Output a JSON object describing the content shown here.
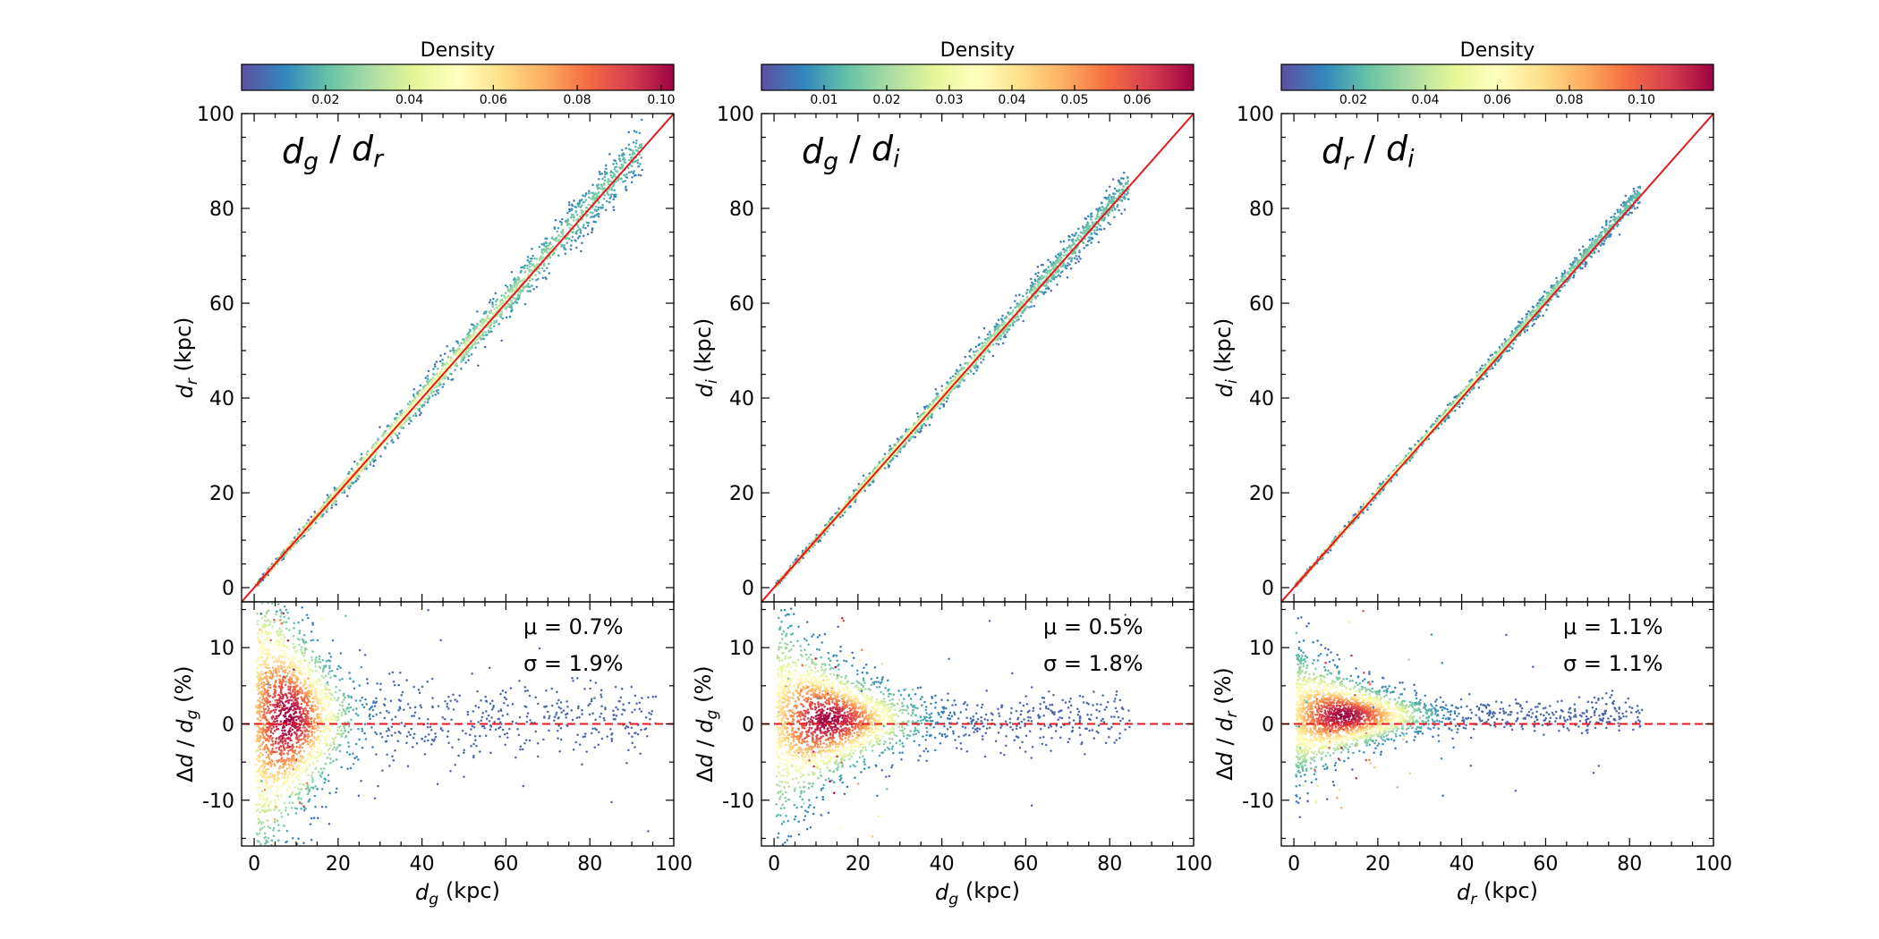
{
  "colormap": "Spectral_r",
  "colors": {
    "identity_line": "#e41a1c",
    "zero_line": "#e41a1c"
  },
  "chart_data": [
    {
      "type": "scatter",
      "panel": "top",
      "title_base": "d",
      "title_sub1": "g",
      "title_sep": " / ",
      "title_sub2": "r",
      "xlabel_base": "d",
      "xlabel_sub": "g",
      "xlabel_unit": " (kpc)",
      "ylabel_base": "d",
      "ylabel_sub": "r",
      "ylabel_unit": " (kpc)",
      "xlim": [
        -3,
        100
      ],
      "ylim": [
        -3,
        100
      ],
      "xticks": [
        0,
        20,
        40,
        60,
        80,
        100
      ],
      "yticks": [
        0,
        20,
        40,
        60,
        80,
        100
      ],
      "reference_line": "y = x",
      "ridge": {
        "x": [
          0,
          10,
          20,
          30,
          40,
          50,
          60,
          70,
          80,
          90
        ],
        "y": [
          0,
          10.1,
          20.1,
          30.2,
          40.3,
          50.4,
          60.4,
          70.5,
          80.6,
          90.6
        ]
      },
      "max_x": 92,
      "scatter_width": 0.028,
      "colorbar": {
        "label": "Density",
        "range": [
          0.0,
          0.103
        ],
        "ticks": [
          "0.02",
          "0.04",
          "0.06",
          "0.08",
          "0.10"
        ],
        "tick_values": [
          0.02,
          0.04,
          0.06,
          0.08,
          0.1
        ]
      },
      "residual": {
        "ylabel_pre": "Δd / d",
        "ylabel_sub": "g",
        "ylabel_unit": " (%)",
        "ylim": [
          -16,
          16
        ],
        "yticks": [
          -10,
          0,
          10
        ],
        "mu_label": "μ = 0.7%",
        "sigma_label": "σ = 1.9%",
        "mu": 0.7,
        "sigma": 1.9,
        "density_peak_x": 8,
        "max_x": 95
      }
    },
    {
      "type": "scatter",
      "panel": "top",
      "title_base": "d",
      "title_sub1": "g",
      "title_sep": " / ",
      "title_sub2": "i",
      "xlabel_base": "d",
      "xlabel_sub": "g",
      "xlabel_unit": " (kpc)",
      "ylabel_base": "d",
      "ylabel_sub": "i",
      "ylabel_unit": " (kpc)",
      "xlim": [
        -3,
        100
      ],
      "ylim": [
        -3,
        100
      ],
      "xticks": [
        0,
        20,
        40,
        60,
        80,
        100
      ],
      "yticks": [
        0,
        20,
        40,
        60,
        80,
        100
      ],
      "reference_line": "y = x",
      "ridge": {
        "x": [
          0,
          10,
          20,
          30,
          40,
          50,
          60,
          70,
          80
        ],
        "y": [
          0,
          10.05,
          20.1,
          30.15,
          40.2,
          50.25,
          60.3,
          70.35,
          80.4
        ]
      },
      "max_x": 84,
      "scatter_width": 0.02,
      "colorbar": {
        "label": "Density",
        "range": [
          0.0,
          0.069
        ],
        "ticks": [
          "0.01",
          "0.02",
          "0.03",
          "0.04",
          "0.05",
          "0.06"
        ],
        "tick_values": [
          0.01,
          0.02,
          0.03,
          0.04,
          0.05,
          0.06
        ]
      },
      "residual": {
        "ylabel_pre": "Δd / d",
        "ylabel_sub": "g",
        "ylabel_unit": " (%)",
        "ylim": [
          -16,
          16
        ],
        "yticks": [
          -10,
          0,
          10
        ],
        "mu_label": "μ = 0.5%",
        "sigma_label": "σ = 1.8%",
        "mu": 0.5,
        "sigma": 1.8,
        "density_peak_x": 13,
        "max_x": 84
      }
    },
    {
      "type": "scatter",
      "panel": "top",
      "title_base": "d",
      "title_sub1": "r",
      "title_sep": " / ",
      "title_sub2": "i",
      "xlabel_base": "d",
      "xlabel_sub": "r",
      "xlabel_unit": " (kpc)",
      "ylabel_base": "d",
      "ylabel_sub": "i",
      "ylabel_unit": " (kpc)",
      "xlim": [
        -3,
        100
      ],
      "ylim": [
        -3,
        100
      ],
      "xticks": [
        0,
        20,
        40,
        60,
        80,
        100
      ],
      "yticks": [
        0,
        20,
        40,
        60,
        80,
        100
      ],
      "reference_line": "y = x",
      "ridge": {
        "x": [
          0,
          10,
          20,
          30,
          40,
          50,
          60,
          70,
          80
        ],
        "y": [
          0,
          10.1,
          20.2,
          30.3,
          40.4,
          50.5,
          60.6,
          70.7,
          80.8
        ]
      },
      "max_x": 82,
      "scatter_width": 0.012,
      "colorbar": {
        "label": "Density",
        "range": [
          0.0,
          0.12
        ],
        "ticks": [
          "0.02",
          "0.04",
          "0.06",
          "0.08",
          "0.10"
        ],
        "tick_values": [
          0.02,
          0.04,
          0.06,
          0.08,
          0.1
        ]
      },
      "residual": {
        "ylabel_pre": "Δd / d",
        "ylabel_sub": "r",
        "ylabel_unit": " (%)",
        "ylim": [
          -16,
          16
        ],
        "yticks": [
          -10,
          0,
          10
        ],
        "mu_label": "μ = 1.1%",
        "sigma_label": "σ = 1.1%",
        "mu": 1.1,
        "sigma": 1.1,
        "density_peak_x": 12,
        "max_x": 82
      }
    }
  ]
}
